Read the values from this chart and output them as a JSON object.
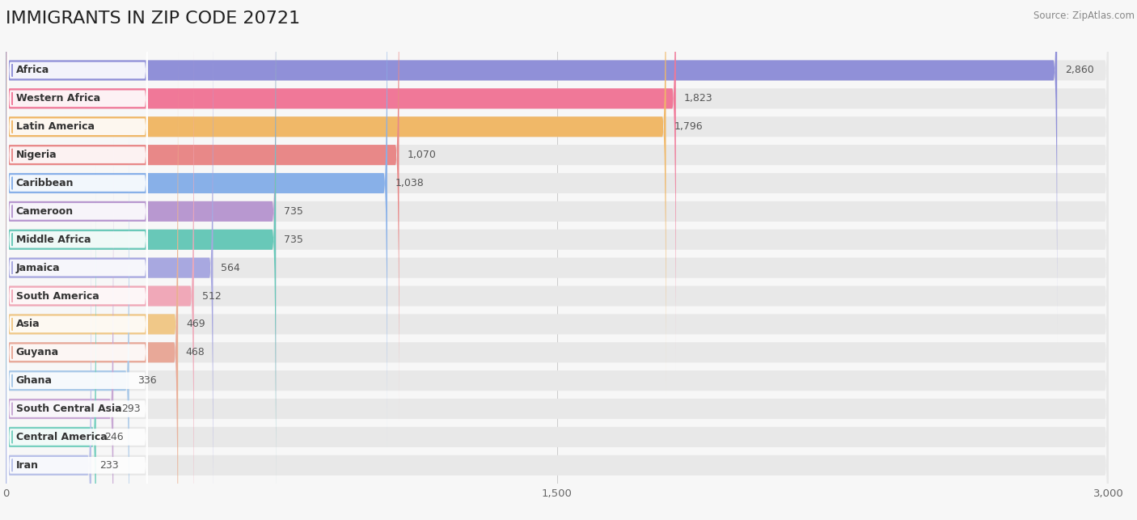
{
  "title": "IMMIGRANTS IN ZIP CODE 20721",
  "source": "Source: ZipAtlas.com",
  "categories": [
    "Africa",
    "Western Africa",
    "Latin America",
    "Nigeria",
    "Caribbean",
    "Cameroon",
    "Middle Africa",
    "Jamaica",
    "South America",
    "Asia",
    "Guyana",
    "Ghana",
    "South Central Asia",
    "Central America",
    "Iran"
  ],
  "values": [
    2860,
    1823,
    1796,
    1070,
    1038,
    735,
    735,
    564,
    512,
    469,
    468,
    336,
    293,
    246,
    233
  ],
  "colors": [
    "#9090d8",
    "#f07898",
    "#f0b868",
    "#e88888",
    "#88b0e8",
    "#b898d0",
    "#68c8b8",
    "#a8a8e0",
    "#f0a8b8",
    "#f0c888",
    "#e8a898",
    "#a8c8e8",
    "#c8a8d4",
    "#78d0c0",
    "#b8c0e8"
  ],
  "xlim": [
    0,
    3000
  ],
  "xticks": [
    0,
    1500,
    3000
  ],
  "background_color": "#f7f7f7",
  "bar_bg_color": "#e8e8e8",
  "title_fontsize": 16,
  "label_fontsize": 9,
  "value_fontsize": 9
}
